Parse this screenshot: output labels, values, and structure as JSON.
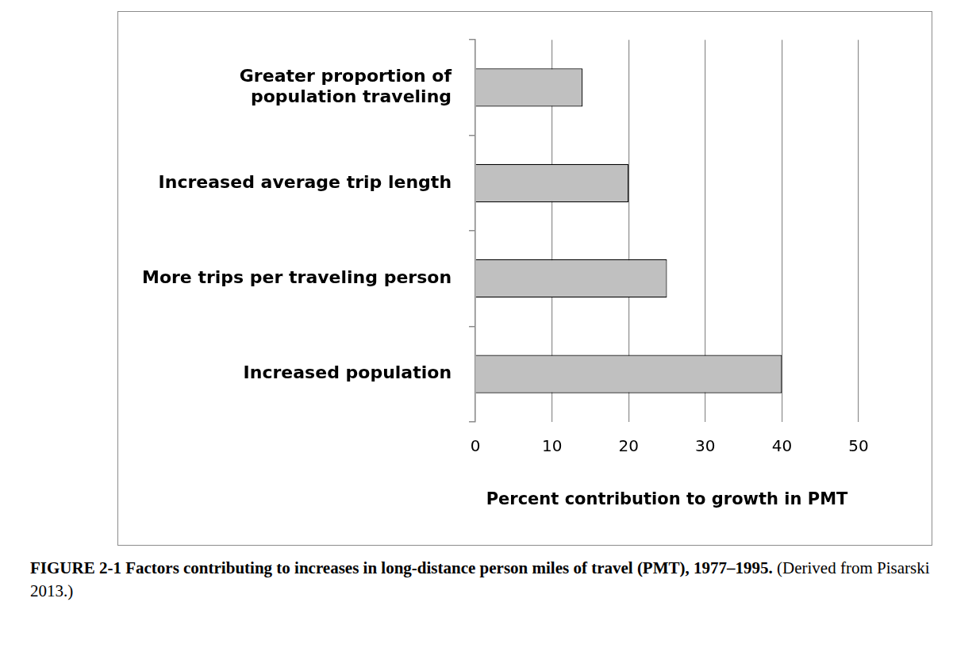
{
  "chart_data": {
    "type": "bar",
    "orientation": "horizontal",
    "title": "FIGURE 2-1  Factors contributing to increases in long-distance person miles of travel (PMT), 1977–1995.",
    "subtitle": "(Derived from Pisarski 2013.)",
    "categories": [
      "Greater proportion of\npopulation traveling",
      "Increased average trip length",
      "More trips per traveling person",
      "Increased population"
    ],
    "values": [
      14,
      20,
      25,
      40
    ],
    "color": "#c0c0c0",
    "xlabel": "Percent contribution to growth in PMT",
    "xlim": [
      0,
      50
    ],
    "xticks": [
      0,
      10,
      20,
      30,
      40,
      50
    ],
    "grid": true
  }
}
